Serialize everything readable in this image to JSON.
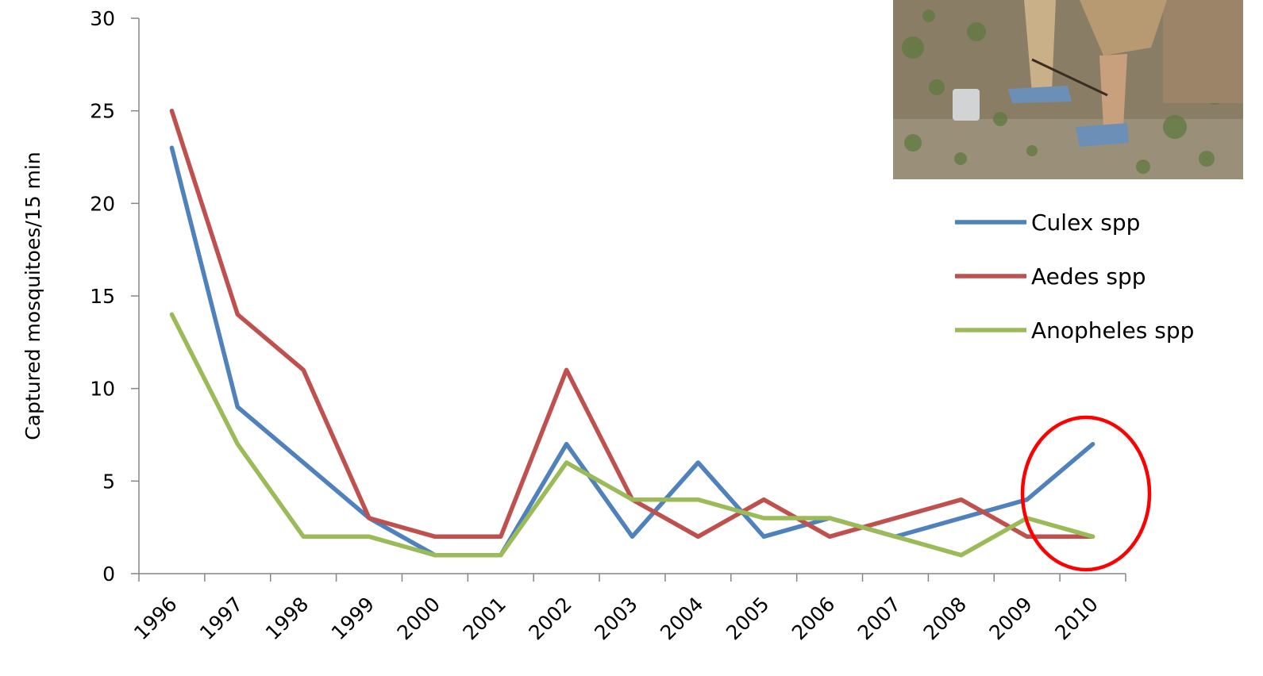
{
  "chart_data": {
    "type": "line",
    "title": "",
    "xlabel": "",
    "ylabel": "Captured mosquitoes/15 min",
    "ylim": [
      0,
      30
    ],
    "yticks": [
      0,
      5,
      10,
      15,
      20,
      25,
      30
    ],
    "categories": [
      "1996",
      "1997",
      "1998",
      "1999",
      "2000",
      "2001",
      "2002",
      "2003",
      "2004",
      "2005",
      "2006",
      "2007",
      "2008",
      "2009",
      "2010"
    ],
    "series": [
      {
        "name": "Culex spp",
        "color": "#4f81bd",
        "values": [
          23,
          9,
          6,
          3,
          1,
          1,
          7,
          2,
          6,
          2,
          3,
          2,
          3,
          4,
          7
        ]
      },
      {
        "name": "Aedes spp",
        "color": "#c0504d",
        "values": [
          25,
          14,
          11,
          3,
          2,
          2,
          11,
          4,
          2,
          4,
          2,
          3,
          4,
          2,
          2
        ]
      },
      {
        "name": "Anopheles spp",
        "color": "#9bbb59",
        "values": [
          14,
          7,
          2,
          2,
          1,
          1,
          6,
          4,
          4,
          3,
          3,
          2,
          1,
          3,
          2
        ]
      }
    ],
    "grid": false,
    "legend_position": "right",
    "annotation": {
      "type": "ellipse",
      "color": "#ff0000",
      "target_category": "2010"
    }
  },
  "inset_photo": {
    "description_icon": "mosquito-trap-photo"
  }
}
